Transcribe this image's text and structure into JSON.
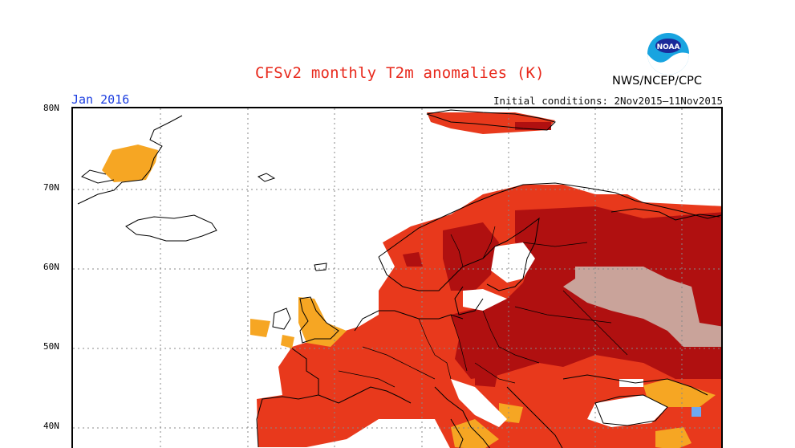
{
  "title": "CFSv2 monthly T2m anomalies (K)",
  "month_label": "Jan 2016",
  "initial_conditions": "Initial conditions: 2Nov2015–11Nov2015",
  "agency": "NWS/NCEP/CPC",
  "logo_text": "NOAA",
  "latitude_labels": [
    "80N",
    "70N",
    "60N",
    "50N",
    "40N"
  ],
  "colors": {
    "title": "#e8291c",
    "month": "#1c3ee0",
    "anomaly_light_orange": "#f6a623",
    "anomaly_orange": "#ff6a00",
    "anomaly_red": "#e8391c",
    "anomaly_dark_red": "#b01010",
    "anomaly_pink": "#c9a39a",
    "anomaly_blue": "#6ea8f0"
  }
}
